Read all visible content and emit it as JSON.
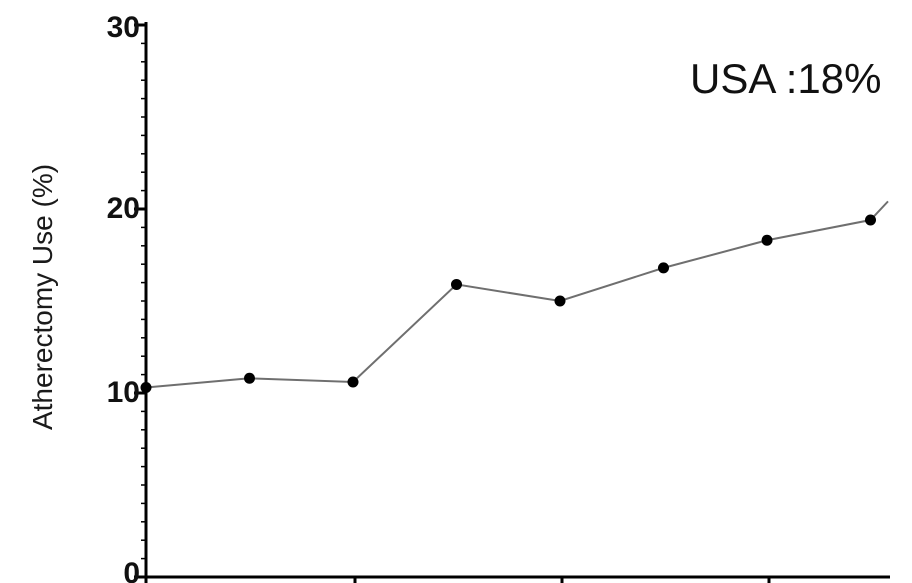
{
  "chart_data": {
    "type": "line",
    "ylabel": "Atherectomy Use (%)",
    "xlabel": "",
    "ylim": [
      0,
      30
    ],
    "yticks": [
      "0",
      "10",
      "20",
      "30"
    ],
    "annotation": "USA :18%",
    "grid": false,
    "series": [
      {
        "x": [
          0,
          1,
          2,
          3,
          4,
          5,
          6,
          7,
          7.2
        ],
        "values": [
          10.3,
          10.8,
          10.6,
          15.9,
          15.0,
          16.8,
          18.3,
          19.4,
          20.6
        ],
        "markers": [
          true,
          true,
          true,
          true,
          true,
          true,
          true,
          true,
          false
        ]
      }
    ],
    "colors": {
      "line": "#6f6f6f",
      "marker": "#000000",
      "axis": "#000000"
    }
  }
}
